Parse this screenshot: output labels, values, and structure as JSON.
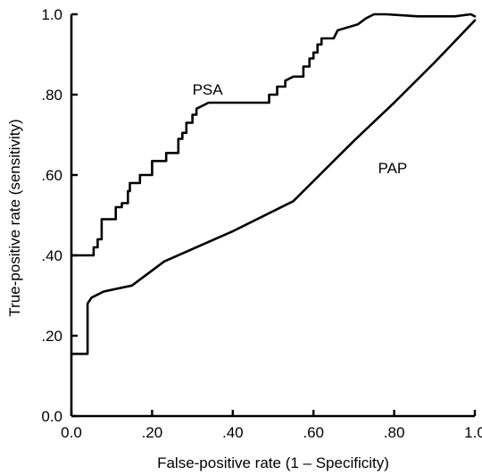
{
  "chart_data": {
    "type": "line",
    "title": "",
    "xlabel": "False-positive rate (1 – Specificity)",
    "ylabel": "True-positive rate (sensitivity)",
    "xlim": [
      0,
      1
    ],
    "ylim": [
      0,
      1
    ],
    "x_ticks": [
      0,
      0.2,
      0.4,
      0.6,
      0.8,
      1.0
    ],
    "x_tick_labels": [
      "0.0",
      ".20",
      ".40",
      ".60",
      ".80",
      "1.0"
    ],
    "y_ticks": [
      0,
      0.2,
      0.4,
      0.6,
      0.8,
      1.0
    ],
    "y_tick_labels": [
      "0.0",
      ".20",
      ".40",
      ".60",
      ".80",
      "1.0"
    ],
    "grid": false,
    "legend": "none",
    "series": [
      {
        "name": "PSA",
        "points": [
          [
            0.0,
            0.4
          ],
          [
            0.055,
            0.4
          ],
          [
            0.055,
            0.42
          ],
          [
            0.065,
            0.42
          ],
          [
            0.065,
            0.44
          ],
          [
            0.075,
            0.44
          ],
          [
            0.075,
            0.49
          ],
          [
            0.11,
            0.49
          ],
          [
            0.11,
            0.52
          ],
          [
            0.125,
            0.52
          ],
          [
            0.125,
            0.53
          ],
          [
            0.14,
            0.53
          ],
          [
            0.14,
            0.56
          ],
          [
            0.145,
            0.56
          ],
          [
            0.145,
            0.58
          ],
          [
            0.17,
            0.58
          ],
          [
            0.17,
            0.6
          ],
          [
            0.2,
            0.6
          ],
          [
            0.2,
            0.635
          ],
          [
            0.235,
            0.635
          ],
          [
            0.235,
            0.655
          ],
          [
            0.265,
            0.655
          ],
          [
            0.265,
            0.69
          ],
          [
            0.275,
            0.69
          ],
          [
            0.275,
            0.705
          ],
          [
            0.285,
            0.705
          ],
          [
            0.285,
            0.73
          ],
          [
            0.3,
            0.73
          ],
          [
            0.3,
            0.75
          ],
          [
            0.31,
            0.75
          ],
          [
            0.31,
            0.765
          ],
          [
            0.34,
            0.78
          ],
          [
            0.49,
            0.78
          ],
          [
            0.49,
            0.8
          ],
          [
            0.51,
            0.8
          ],
          [
            0.51,
            0.82
          ],
          [
            0.53,
            0.82
          ],
          [
            0.53,
            0.835
          ],
          [
            0.55,
            0.845
          ],
          [
            0.575,
            0.845
          ],
          [
            0.575,
            0.87
          ],
          [
            0.59,
            0.87
          ],
          [
            0.59,
            0.89
          ],
          [
            0.6,
            0.89
          ],
          [
            0.6,
            0.905
          ],
          [
            0.61,
            0.905
          ],
          [
            0.61,
            0.925
          ],
          [
            0.62,
            0.925
          ],
          [
            0.62,
            0.94
          ],
          [
            0.65,
            0.94
          ],
          [
            0.66,
            0.96
          ],
          [
            0.71,
            0.975
          ],
          [
            0.73,
            0.99
          ],
          [
            0.75,
            1.0
          ],
          [
            0.78,
            1.0
          ],
          [
            0.86,
            0.995
          ],
          [
            0.95,
            0.995
          ],
          [
            0.99,
            1.0
          ],
          [
            1.0,
            0.995
          ]
        ]
      },
      {
        "name": "PAP",
        "points": [
          [
            0.0,
            0.155
          ],
          [
            0.04,
            0.155
          ],
          [
            0.04,
            0.28
          ],
          [
            0.05,
            0.295
          ],
          [
            0.08,
            0.31
          ],
          [
            0.15,
            0.325
          ],
          [
            0.23,
            0.385
          ],
          [
            0.4,
            0.46
          ],
          [
            0.55,
            0.535
          ],
          [
            0.6,
            0.585
          ],
          [
            0.7,
            0.685
          ],
          [
            0.8,
            0.78
          ],
          [
            0.9,
            0.88
          ],
          [
            1.0,
            0.985
          ]
        ]
      }
    ],
    "annotations": [
      {
        "text": "PSA",
        "x": 0.3,
        "y": 0.8
      },
      {
        "text": "PAP",
        "x": 0.76,
        "y": 0.605
      }
    ]
  }
}
